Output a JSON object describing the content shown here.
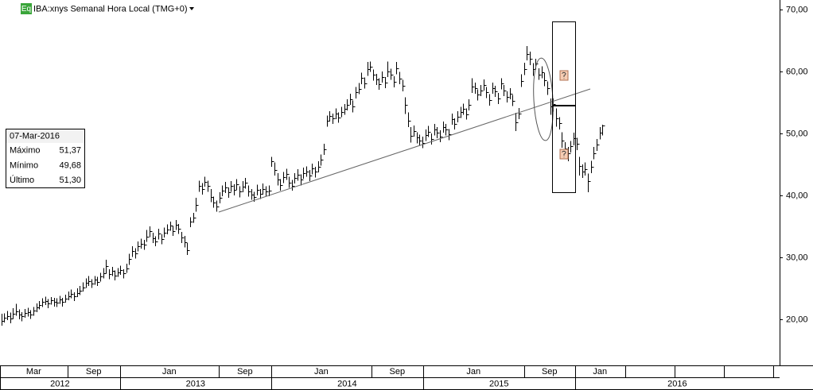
{
  "chart_data": {
    "type": "ohlc",
    "badge": "Eq",
    "title": "IBA:xnys Semanal Hora Local (TMG+0)",
    "ylim": [
      12.6,
      71.5
    ],
    "yticks": [
      {
        "value": 20,
        "label": "20,00"
      },
      {
        "value": 30,
        "label": "30,00"
      },
      {
        "value": 40,
        "label": "40,00"
      },
      {
        "value": 50,
        "label": "50,00"
      },
      {
        "value": 60,
        "label": "60,00"
      },
      {
        "value": 70,
        "label": "70,00"
      }
    ],
    "xlim": [
      -0.5,
      268
    ],
    "months": [
      {
        "value": -0.5,
        "label": "Mar"
      },
      {
        "value": 22.7,
        "label": "Sep"
      },
      {
        "value": 40.8,
        "label": "Jan"
      },
      {
        "value": 74.8,
        "label": "Sep"
      },
      {
        "value": 92.9,
        "label": "Jan"
      },
      {
        "value": 127.4,
        "label": "Sep"
      },
      {
        "value": 145.2,
        "label": "Jan"
      },
      {
        "value": 180,
        "label": "Sep"
      },
      {
        "value": 197.5,
        "label": "Jan"
      },
      {
        "value": 214.8,
        "label": null
      },
      {
        "value": 231.8,
        "label": null
      },
      {
        "value": 248.7,
        "label": null
      },
      {
        "value": 265.7,
        "label": null
      }
    ],
    "years": [
      {
        "value": -0.5,
        "label": "2012"
      },
      {
        "value": 40.8,
        "label": "2013"
      },
      {
        "value": 92.9,
        "label": "2014"
      },
      {
        "value": 145.2,
        "label": "2015"
      },
      {
        "value": 197.5,
        "label": "2016"
      }
    ],
    "color": "#000000",
    "high": [
      20.9,
      21.0,
      21.4,
      21.1,
      21.8,
      22.5,
      21.6,
      21.2,
      21.7,
      21.9,
      21.5,
      22.0,
      22.6,
      23.0,
      23.4,
      23.7,
      23.3,
      23.6,
      23.5,
      23.4,
      23.8,
      23.5,
      24.0,
      24.5,
      24.8,
      24.4,
      25.0,
      25.4,
      26.0,
      26.6,
      27.0,
      26.5,
      27.0,
      26.9,
      27.5,
      28.3,
      29.6,
      28.1,
      28.5,
      27.9,
      28.3,
      28.7,
      28.1,
      29.0,
      30.6,
      31.8,
      31.5,
      32.6,
      33.0,
      32.8,
      34.4,
      35.0,
      34.0,
      33.4,
      34.6,
      33.7,
      34.8,
      35.3,
      35.8,
      35.1,
      36.0,
      35.4,
      34.1,
      33.5,
      32.3,
      36.5,
      37.2,
      39.6,
      42.4,
      42.0,
      43.0,
      42.4,
      41.0,
      39.8,
      39.2,
      40.5,
      41.6,
      42.2,
      41.3,
      42.3,
      41.8,
      42.6,
      41.5,
      42.3,
      42.8,
      41.6,
      41.0,
      40.6,
      41.7,
      41.0,
      41.9,
      41.5,
      41.6,
      46.2,
      45.3,
      43.6,
      42.6,
      43.8,
      44.3,
      43.0,
      42.5,
      43.6,
      44.2,
      43.4,
      44.5,
      44.7,
      44.1,
      45.1,
      44.6,
      45.5,
      46.6,
      48.3,
      52.9,
      53.6,
      53.2,
      54.0,
      53.4,
      54.3,
      54.7,
      55.5,
      56.4,
      55.3,
      57.5,
      58.1,
      59.8,
      59.0,
      61.5,
      61.6,
      60.3,
      59.6,
      58.9,
      60.0,
      59.1,
      61.6,
      60.4,
      59.2,
      61.5,
      59.9,
      58.6,
      55.8,
      53.4,
      51.0,
      51.3,
      50.2,
      49.8,
      49.5,
      50.6,
      51.2,
      50.0,
      51.5,
      51.0,
      50.5,
      51.9,
      51.5,
      50.7,
      53.2,
      52.4,
      53.6,
      54.3,
      54.8,
      54.0,
      55.5,
      58.9,
      58.2,
      57.1,
      57.8,
      58.7,
      57.5,
      56.3,
      58.2,
      57.7,
      56.5,
      58.9,
      57.8,
      56.8,
      57.3,
      56.2,
      53.3,
      54.1,
      59.5,
      61.4,
      64.1,
      63.2,
      61.3,
      62.0,
      60.5,
      60.8,
      59.7,
      58.4,
      55.6,
      55.6,
      54.0,
      52.6,
      50.2,
      48.6,
      47.8,
      48.8,
      50.1,
      49.3,
      46.2,
      45.0,
      45.3,
      43.5,
      45.6,
      47.8,
      49.1,
      51.0,
      51.37
    ],
    "low": [
      19.0,
      19.5,
      19.9,
      19.4,
      20.1,
      20.6,
      20.0,
      19.7,
      20.3,
      20.5,
      20.1,
      20.6,
      21.2,
      21.6,
      22.0,
      22.3,
      21.8,
      22.4,
      22.1,
      22.0,
      22.5,
      22.1,
      22.7,
      23.1,
      23.4,
      23.0,
      23.6,
      23.9,
      24.5,
      25.1,
      25.4,
      25.1,
      25.6,
      25.4,
      26.1,
      26.6,
      27.4,
      26.5,
      27.0,
      26.3,
      26.9,
      27.2,
      26.6,
      27.5,
      28.8,
      30.1,
      29.8,
      31.0,
      31.4,
      31.2,
      32.5,
      33.3,
      32.3,
      31.8,
      32.9,
      32.1,
      33.2,
      33.7,
      34.3,
      33.5,
      34.4,
      33.8,
      32.3,
      31.6,
      30.4,
      34.9,
      35.6,
      37.4,
      40.6,
      40.1,
      41.4,
      40.6,
      38.9,
      38.0,
      37.4,
      38.7,
      39.9,
      40.4,
      39.6,
      40.6,
      40.0,
      40.9,
      39.7,
      40.5,
      41.1,
      39.8,
      39.3,
      39.0,
      40.0,
      39.4,
      40.1,
      39.8,
      39.9,
      44.6,
      43.2,
      41.6,
      40.8,
      42.0,
      42.5,
      41.2,
      40.8,
      41.9,
      42.4,
      41.6,
      42.7,
      43.0,
      42.3,
      43.4,
      42.9,
      43.7,
      44.8,
      46.5,
      51.1,
      51.9,
      51.5,
      52.3,
      51.7,
      52.6,
      53.0,
      53.7,
      54.6,
      53.4,
      55.6,
      56.3,
      57.9,
      57.2,
      59.3,
      59.9,
      58.5,
      57.8,
      57.0,
      58.2,
      57.3,
      59.1,
      58.6,
      57.4,
      59.5,
      57.9,
      56.8,
      53.1,
      51.0,
      48.5,
      49.5,
      48.4,
      48.0,
      47.6,
      48.8,
      49.4,
      48.2,
      49.7,
      49.2,
      48.6,
      50.1,
      49.7,
      48.9,
      51.4,
      50.6,
      51.8,
      52.5,
      53.0,
      52.2,
      53.7,
      56.5,
      56.4,
      55.3,
      56.0,
      56.9,
      55.7,
      54.5,
      56.4,
      55.9,
      54.7,
      57.1,
      56.0,
      55.0,
      55.5,
      54.4,
      50.4,
      52.3,
      57.5,
      59.4,
      61.8,
      61.0,
      59.3,
      60.3,
      58.6,
      58.9,
      57.6,
      56.2,
      53.0,
      53.5,
      51.1,
      50.6,
      47.7,
      46.5,
      45.5,
      46.9,
      48.1,
      47.3,
      43.2,
      42.8,
      43.2,
      40.5,
      43.6,
      45.8,
      47.2,
      49.0,
      49.68
    ],
    "close": [
      19.8,
      20.3,
      20.6,
      20.2,
      20.9,
      21.3,
      20.8,
      20.5,
      21.0,
      21.2,
      20.8,
      21.4,
      21.9,
      22.3,
      22.8,
      23.0,
      22.6,
      23.1,
      22.9,
      22.7,
      23.2,
      22.8,
      23.4,
      23.8,
      24.1,
      23.7,
      24.3,
      24.6,
      25.2,
      25.9,
      26.2,
      25.8,
      26.4,
      26.1,
      26.9,
      27.4,
      28.6,
      27.3,
      27.8,
      27.1,
      27.6,
      28.0,
      27.4,
      28.2,
      29.8,
      31.0,
      30.6,
      31.8,
      32.2,
      32.0,
      33.4,
      34.2,
      33.1,
      32.6,
      33.8,
      32.9,
      34.0,
      34.5,
      35.1,
      34.3,
      35.3,
      34.6,
      33.2,
      32.5,
      31.2,
      35.8,
      36.4,
      38.5,
      41.6,
      41.0,
      42.2,
      41.5,
      39.8,
      38.9,
      38.2,
      39.6,
      40.8,
      41.3,
      40.5,
      41.5,
      40.9,
      41.8,
      40.6,
      41.4,
      42.0,
      40.7,
      40.1,
      39.8,
      40.9,
      40.2,
      41.0,
      40.6,
      40.8,
      45.5,
      44.1,
      42.5,
      41.7,
      42.9,
      43.4,
      42.1,
      41.6,
      42.8,
      43.3,
      42.5,
      43.6,
      43.9,
      43.2,
      44.3,
      43.8,
      44.6,
      45.7,
      47.4,
      52.1,
      52.8,
      52.4,
      53.2,
      52.6,
      53.5,
      53.9,
      54.6,
      55.5,
      54.3,
      56.6,
      57.2,
      58.9,
      58.1,
      60.3,
      60.8,
      59.4,
      58.7,
      57.9,
      59.1,
      58.2,
      60.0,
      59.5,
      58.3,
      60.5,
      58.8,
      57.7,
      54.6,
      52.1,
      49.6,
      50.4,
      49.3,
      48.9,
      48.5,
      49.7,
      50.3,
      49.1,
      50.6,
      50.1,
      49.5,
      51.0,
      50.6,
      49.8,
      52.3,
      51.5,
      52.7,
      53.4,
      53.9,
      53.1,
      54.6,
      57.6,
      57.3,
      56.2,
      56.9,
      57.8,
      56.6,
      55.4,
      57.3,
      56.8,
      55.6,
      58.0,
      56.9,
      55.9,
      56.4,
      55.3,
      51.8,
      53.2,
      58.5,
      60.4,
      62.8,
      62.0,
      60.3,
      61.2,
      59.5,
      59.8,
      58.6,
      57.3,
      54.3,
      54.7,
      52.4,
      51.6,
      48.9,
      47.6,
      46.8,
      47.9,
      49.2,
      48.3,
      44.8,
      43.9,
      44.2,
      42.3,
      44.6,
      46.8,
      48.2,
      50.1,
      51.3
    ],
    "info": {
      "date": "07-Mar-2016",
      "rows": [
        {
          "name": "Máximo",
          "label": "51,37"
        },
        {
          "name": "Mínimo",
          "label": "49,68"
        },
        {
          "name": "Último",
          "label": "51,30"
        }
      ]
    }
  }
}
